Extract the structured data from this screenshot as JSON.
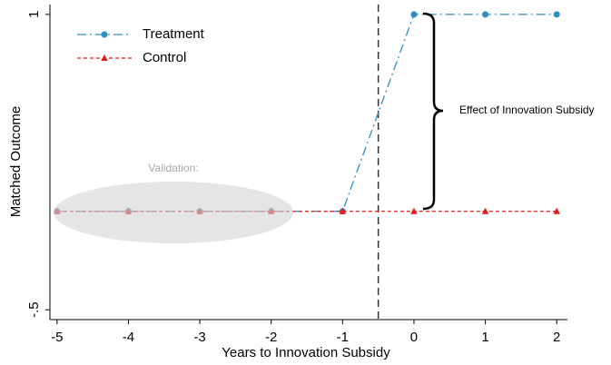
{
  "chart_data": {
    "type": "line",
    "x_label": "Years to Innovation Subsidy",
    "y_label": "Matched Outcome",
    "x": [
      -5,
      -4,
      -3,
      -2,
      -1,
      0,
      1,
      2
    ],
    "series": [
      {
        "name": "Treatment",
        "color": "#2a8fc0",
        "values": [
          0,
          0,
          0,
          0,
          0,
          1,
          1,
          1
        ]
      },
      {
        "name": "Control",
        "color": "#e41a1c",
        "values": [
          0,
          0,
          0,
          0,
          0,
          0,
          0,
          0
        ]
      }
    ],
    "xlim": [
      -5.1,
      2.15
    ],
    "xticks": [
      -5,
      -4,
      -3,
      -2,
      -1,
      0,
      1,
      2
    ],
    "ylim": [
      -0.55,
      1.05
    ],
    "yticks": [
      {
        "value": -0.5,
        "label": "-.5"
      },
      1
    ],
    "vline": -0.5,
    "annotations": [
      "Validation:",
      "Effect of Innovation Subsidy"
    ],
    "legend": "top-left"
  }
}
